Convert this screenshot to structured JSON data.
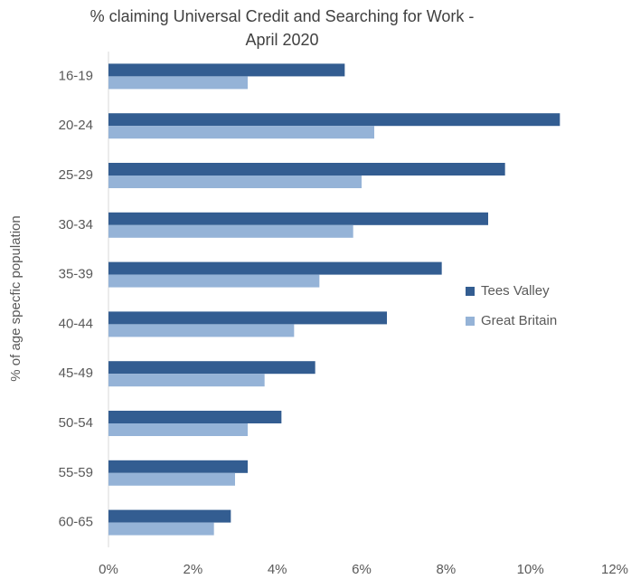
{
  "chart_data": {
    "type": "hbar",
    "title": [
      "% claiming Universal Credit and Searching for Work -",
      "April 2020"
    ],
    "y_label": "% of age specfic population",
    "categories": [
      "16-19",
      "20-24",
      "25-29",
      "30-34",
      "35-39",
      "40-44",
      "45-49",
      "50-54",
      "55-59",
      "60-65"
    ],
    "series": [
      {
        "name": "Tees Valley",
        "color": "#335d91",
        "values": [
          5.6,
          10.7,
          9.4,
          9.0,
          7.9,
          6.6,
          4.9,
          4.1,
          3.3,
          2.9
        ]
      },
      {
        "name": "Great Britain",
        "color": "#95b3d7",
        "values": [
          3.3,
          6.3,
          6.0,
          5.8,
          5.0,
          4.4,
          3.7,
          3.3,
          3.0,
          2.5
        ]
      }
    ],
    "xlim": [
      0,
      12
    ],
    "xticks": [
      {
        "value": 0,
        "label": "0%"
      },
      {
        "value": 2,
        "label": "2%"
      },
      {
        "value": 4,
        "label": "4%"
      },
      {
        "value": 6,
        "label": "6%"
      },
      {
        "value": 8,
        "label": "8%"
      },
      {
        "value": 10,
        "label": "10%"
      },
      {
        "value": 12,
        "label": "12%"
      }
    ],
    "grid": false,
    "legend": "right"
  }
}
